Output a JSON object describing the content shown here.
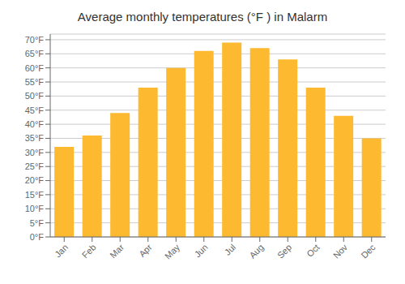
{
  "chart_data": {
    "type": "bar",
    "title": "Average monthly temperatures (°F ) in Malarm",
    "categories": [
      "Jan",
      "Feb",
      "Mar",
      "Apr",
      "May",
      "Jun",
      "Jul",
      "Aug",
      "Sep",
      "Oct",
      "Nov",
      "Dec"
    ],
    "values": [
      32,
      36,
      44,
      53,
      60,
      66,
      69,
      67,
      63,
      53,
      43,
      35
    ],
    "color": "#FDB930",
    "ylim": [
      0,
      72
    ],
    "yticks": [
      {
        "value": 0,
        "label": "0°F"
      },
      {
        "value": 5,
        "label": "5°F"
      },
      {
        "value": 10,
        "label": "10°F"
      },
      {
        "value": 15,
        "label": "15°F"
      },
      {
        "value": 20,
        "label": "20°F"
      },
      {
        "value": 25,
        "label": "25°F"
      },
      {
        "value": 30,
        "label": "30°F"
      },
      {
        "value": 35,
        "label": "35°F"
      },
      {
        "value": 40,
        "label": "40°F"
      },
      {
        "value": 45,
        "label": "45°F"
      },
      {
        "value": 50,
        "label": "50°F"
      },
      {
        "value": 55,
        "label": "55°F"
      },
      {
        "value": 60,
        "label": "60°F"
      },
      {
        "value": 65,
        "label": "65°F"
      },
      {
        "value": 70,
        "label": "70°F"
      }
    ],
    "grid": true
  }
}
